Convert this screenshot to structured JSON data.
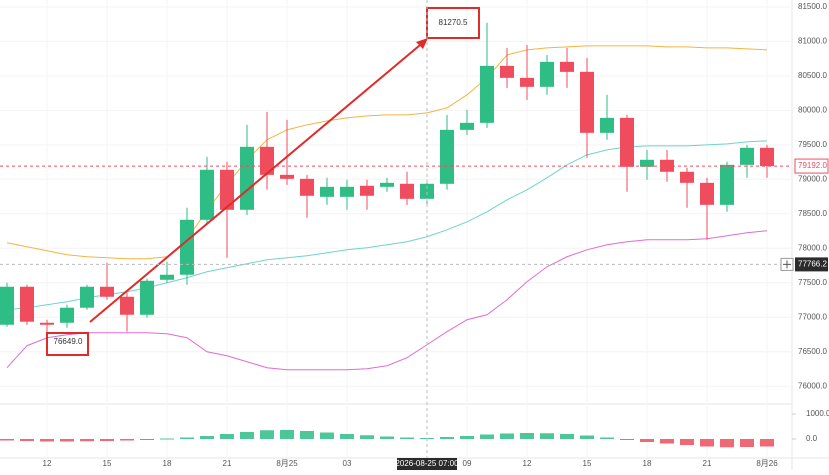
{
  "chart_data": {
    "type": "candlestick",
    "categories": [
      null,
      null,
      "12",
      null,
      null,
      "15",
      null,
      null,
      "18",
      null,
      null,
      "21",
      null,
      null,
      "8月25",
      null,
      null,
      "03",
      null,
      null,
      null,
      null,
      null,
      "09",
      null,
      null,
      "12",
      null,
      null,
      "15",
      null,
      null,
      "18",
      null,
      null,
      "21",
      null,
      null,
      "8月26"
    ],
    "up_color": "#2ebd85",
    "down_color": "#ef4d5d",
    "open": [
      76891,
      77442,
      76920,
      76920,
      77138,
      77442,
      77297,
      77036,
      77543,
      77616,
      78413,
      79138,
      78558,
      79471,
      79065,
      79007,
      78746,
      78746,
      78906,
      78891,
      78935,
      78717,
      78935,
      79717,
      79819,
      80645,
      80471,
      80341,
      80703,
      80558,
      79674,
      79891,
      79181,
      79283,
      79109,
      78949,
      78630,
      79210,
      79457
    ],
    "high": [
      77500,
      77471,
      76964,
      77181,
      77471,
      77790,
      77355,
      77558,
      77804,
      78587,
      79326,
      79254,
      79790,
      79978,
      79862,
      79065,
      79022,
      78993,
      78993,
      79022,
      79109,
      78993,
      79935,
      80007,
      81270.5,
      80906,
      80949,
      80804,
      80906,
      80761,
      80225,
      79935,
      79427,
      79427,
      79167,
      79022,
      79254,
      79500,
      79500
    ],
    "low": [
      76862,
      76891,
      76649,
      76848,
      77109,
      77254,
      76790,
      76993,
      77500,
      77471,
      78341,
      77862,
      78485,
      78848,
      78920,
      78442,
      78630,
      78558,
      78558,
      78819,
      78630,
      78630,
      78848,
      79645,
      79746,
      80326,
      80152,
      80225,
      80326,
      79312,
      79573,
      78819,
      78993,
      78964,
      78587,
      78124,
      78529,
      79022,
      79022
    ],
    "close": [
      77442,
      76935,
      76891,
      77138,
      77442,
      77297,
      77036,
      77529,
      77616,
      78413,
      79138,
      78558,
      79471,
      79065,
      79007,
      78761,
      78891,
      78891,
      78761,
      78949,
      78717,
      78935,
      79717,
      79819,
      80645,
      80471,
      80341,
      80703,
      80558,
      79674,
      79891,
      79181,
      79283,
      79109,
      78949,
      78630,
      79210,
      79457,
      79192
    ],
    "series": [
      {
        "color": "#f5b342",
        "values": [
          78080,
          78022,
          77964,
          77906,
          77877,
          77862,
          77848,
          77848,
          77877,
          78124,
          78558,
          78920,
          79283,
          79573,
          79717,
          79790,
          79848,
          79891,
          79920,
          79935,
          79935,
          79964,
          80036,
          80225,
          80471,
          80804,
          80877,
          80906,
          80920,
          80935,
          80935,
          80935,
          80935,
          80920,
          80920,
          80906,
          80906,
          80891,
          80877
        ]
      },
      {
        "color": "#6dd5c7",
        "values": [
          77109,
          77138,
          77181,
          77225,
          77283,
          77326,
          77370,
          77428,
          77500,
          77573,
          77660,
          77718,
          77776,
          77833,
          77862,
          77891,
          77935,
          77978,
          78007,
          78051,
          78094,
          78167,
          78268,
          78384,
          78529,
          78703,
          78848,
          79022,
          79210,
          79355,
          79427,
          79471,
          79485,
          79485,
          79485,
          79500,
          79514,
          79543,
          79558
        ]
      },
      {
        "color": "#e36bd0",
        "values": [
          76268,
          76587,
          76703,
          76746,
          76775,
          76775,
          76775,
          76775,
          76761,
          76703,
          76500,
          76442,
          76355,
          76268,
          76239,
          76239,
          76239,
          76239,
          76254,
          76297,
          76413,
          76601,
          76790,
          76964,
          77036,
          77254,
          77515,
          77732,
          77877,
          77978,
          78051,
          78094,
          78124,
          78124,
          78124,
          78138,
          78181,
          78225,
          78254
        ]
      }
    ],
    "ylim": [
      75800,
      81600
    ],
    "yticks": [
      {
        "value": 76000,
        "label": "76000.0"
      },
      {
        "value": 76500,
        "label": "76500.0"
      },
      {
        "value": 77000,
        "label": "77000.0"
      },
      {
        "value": 77500,
        "label": "77500.0"
      },
      {
        "value": 78000,
        "label": "78000.0"
      },
      {
        "value": 78500,
        "label": "78500.0"
      },
      {
        "value": 79000,
        "label": "79000.0"
      },
      {
        "value": 79500,
        "label": "79500.0"
      },
      {
        "value": 80000,
        "label": "80000.0"
      },
      {
        "value": 80500,
        "label": "80500.0"
      },
      {
        "value": 81000,
        "label": "81000.0"
      },
      {
        "value": 81500,
        "label": "81500.0"
      }
    ],
    "high_marker": 81270.5,
    "low_marker": {
      "value": 76649,
      "label": "76649.0"
    },
    "last_price": {
      "value": 79192,
      "label": "79192.0"
    },
    "crosshair": {
      "time_label": "2026-08-25 07:00",
      "price": 77766.2
    },
    "histogram": [
      -60,
      -80,
      -100,
      -100,
      -90,
      -80,
      -60,
      -40,
      20,
      60,
      120,
      200,
      280,
      350,
      360,
      320,
      260,
      200,
      150,
      100,
      60,
      40,
      80,
      120,
      180,
      220,
      240,
      230,
      200,
      140,
      60,
      -40,
      -120,
      -180,
      -240,
      -300,
      -330,
      -320,
      -300
    ],
    "hist_ylim": [
      -600,
      1400
    ],
    "hist_yticks": [
      {
        "value": 0,
        "label": "0.0"
      },
      {
        "value": 1000,
        "label": "1000.0"
      }
    ],
    "grid": true
  }
}
